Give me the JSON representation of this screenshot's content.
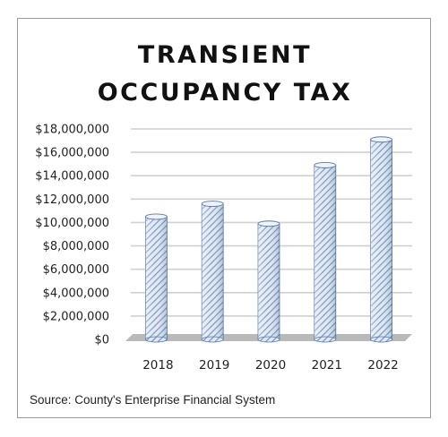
{
  "chart_data": {
    "type": "bar",
    "title": [
      "TRANSIENT",
      "OCCUPANCY TAX"
    ],
    "categories": [
      "2018",
      "2019",
      "2020",
      "2021",
      "2022"
    ],
    "values": [
      10500000,
      11600000,
      9900000,
      14900000,
      17100000
    ],
    "yticks": [
      0,
      2000000,
      4000000,
      6000000,
      8000000,
      10000000,
      12000000,
      14000000,
      16000000,
      18000000
    ],
    "ytick_labels": [
      "$0",
      "$2,000,000",
      "$4,000,000",
      "$6,000,000",
      "$8,000,000",
      "$10,000,000",
      "$12,000,000",
      "$14,000,000",
      "$16,000,000",
      "$18,000,000"
    ],
    "ylim": [
      0,
      18000000
    ],
    "xlabel": "",
    "ylabel": "",
    "grid": true,
    "legend": "none",
    "colors": {
      "bar_fill": "#dfe8f4",
      "bar_hatch": "#6f8fb6",
      "bar_edge": "#5a7aa3",
      "grid": "#d0d0d0",
      "floor": "#b9b9b9"
    }
  },
  "source": "Source: County's Enterprise Financial System"
}
